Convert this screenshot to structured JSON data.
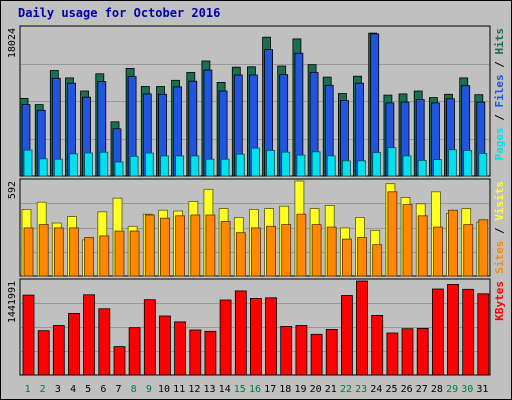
{
  "chart_data": {
    "type": "bar",
    "title": "Daily usage for October 2016",
    "days": [
      "1",
      "2",
      "3",
      "4",
      "5",
      "6",
      "7",
      "8",
      "9",
      "10",
      "11",
      "12",
      "13",
      "14",
      "15",
      "16",
      "17",
      "18",
      "19",
      "20",
      "21",
      "22",
      "23",
      "24",
      "25",
      "26",
      "27",
      "28",
      "29",
      "30",
      "31"
    ],
    "weekend_days": [
      "1",
      "2",
      "8",
      "9",
      "15",
      "16",
      "22",
      "23",
      "29",
      "30"
    ],
    "panels": [
      {
        "id": "hits",
        "ymax_label": "18024",
        "ymax": 18024,
        "right_labels": [
          "Pages",
          "Files",
          "Hits"
        ],
        "series": [
          {
            "name": "Hits",
            "color": "#1a6e52",
            "values": [
              9450,
              8700,
              12850,
              11950,
              10350,
              12450,
              6600,
              13100,
              10900,
              10900,
              11650,
              12600,
              14000,
              11400,
              13250,
              13300,
              16900,
              13400,
              16700,
              13550,
              12050,
              10050,
              12150,
              17400,
              9850,
              10000,
              10350,
              9550,
              9950,
              11950,
              9900
            ]
          },
          {
            "name": "Files",
            "color": "#2255dd",
            "values": [
              8700,
              8000,
              11900,
              11300,
              9600,
              11500,
              5750,
              12100,
              10000,
              9950,
              10850,
              11550,
              12900,
              10350,
              12300,
              12300,
              15400,
              12350,
              14950,
              12600,
              11050,
              9200,
              11300,
              17300,
              8900,
              9000,
              9300,
              8900,
              9400,
              11000,
              9000
            ]
          },
          {
            "name": "Pages",
            "color": "#00e0ee",
            "values": [
              3150,
              2100,
              2050,
              2700,
              2800,
              2900,
              1700,
              2400,
              2800,
              2450,
              2450,
              2450,
              2050,
              2050,
              2650,
              3400,
              3100,
              2900,
              2550,
              2950,
              2450,
              1850,
              1850,
              2850,
              3450,
              2450,
              1900,
              2000,
              3200,
              3100,
              2750
            ]
          }
        ]
      },
      {
        "id": "visits",
        "ymax_label": "592",
        "ymax": 592,
        "right_labels": [
          "Sites",
          "Visits"
        ],
        "series": [
          {
            "name": "Visits",
            "color": "#ffff22",
            "values": [
              415,
              460,
              330,
              370,
              225,
              400,
              485,
              310,
              385,
              410,
              405,
              465,
              540,
              420,
              365,
              415,
              420,
              435,
              592,
              420,
              440,
              300,
              365,
              285,
              575,
              490,
              450,
              525,
              390,
              420,
              335
            ]
          },
          {
            "name": "Sites",
            "color": "#ff8800",
            "values": [
              300,
              320,
              300,
              300,
              240,
              250,
              280,
              280,
              380,
              360,
              375,
              380,
              380,
              340,
              270,
              300,
              310,
              320,
              385,
              320,
              305,
              230,
              240,
              195,
              525,
              445,
              375,
              305,
              410,
              320,
              350
            ]
          }
        ]
      },
      {
        "id": "kbytes",
        "ymax_label": "1441991",
        "ymax": 1441991,
        "right_labels": [
          "KBytes"
        ],
        "series": [
          {
            "name": "KBytes",
            "color": "#ff0000",
            "values": [
              1225000,
              680000,
              760000,
              945000,
              1230000,
              1015000,
              435000,
              725000,
              1155000,
              905000,
              815000,
              690000,
              670000,
              1150000,
              1290000,
              1175000,
              1185000,
              745000,
              760000,
              625000,
              700000,
              1220000,
              1441991,
              915000,
              645000,
              710000,
              715000,
              1320000,
              1390000,
              1315000,
              1245000
            ]
          }
        ]
      }
    ]
  }
}
